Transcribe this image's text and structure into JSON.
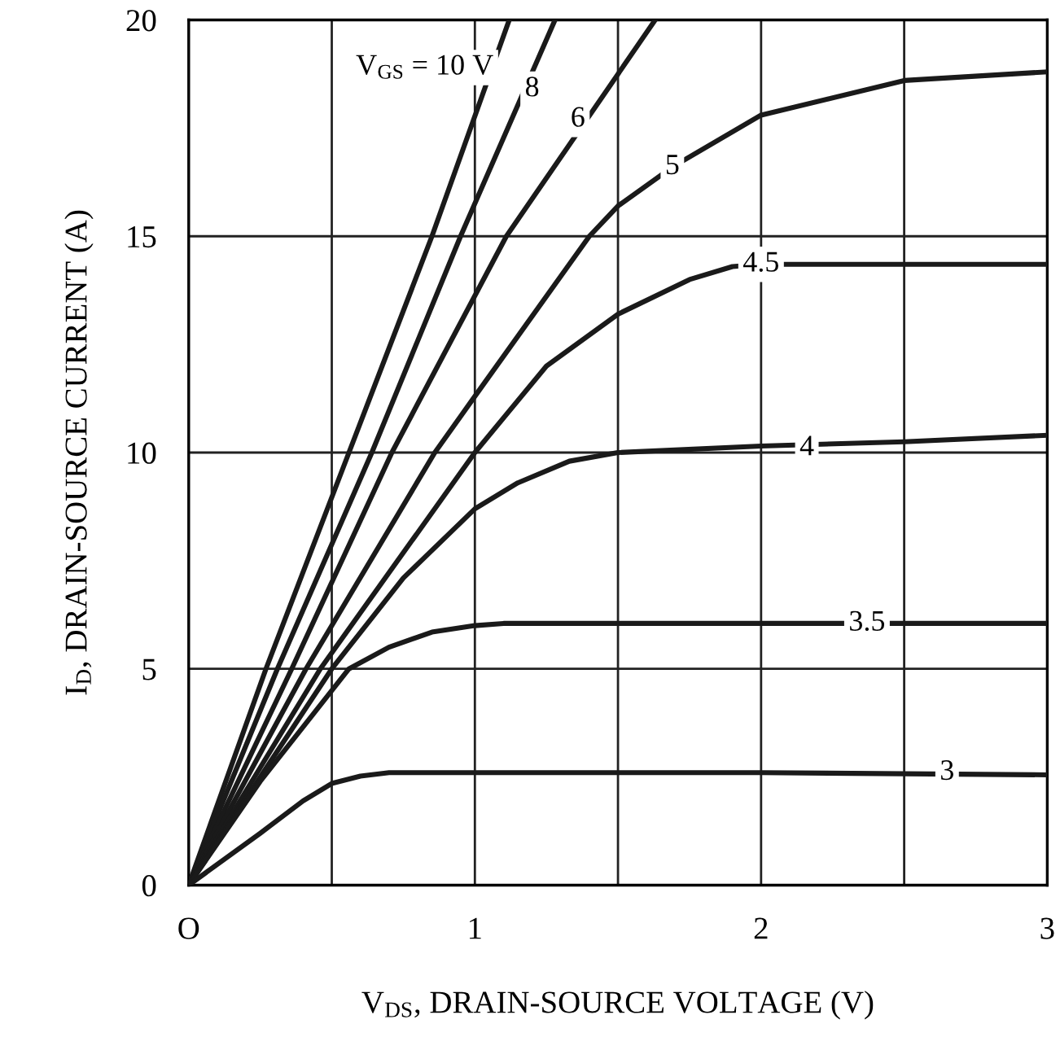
{
  "chart_data": {
    "type": "line",
    "xlabel": "V$_{DS}$, DRAIN-SOURCE VOLTAGE (V)",
    "ylabel": "I$_{D}$, DRAIN-SOURCE CURRENT (A)",
    "xlim": [
      0,
      3
    ],
    "ylim": [
      0,
      20
    ],
    "xticks": [
      {
        "value": 0,
        "label": "O"
      },
      {
        "value": 0.5,
        "label": null
      },
      1,
      {
        "value": 1.5,
        "label": null
      },
      2,
      {
        "value": 2.5,
        "label": null
      },
      3
    ],
    "yticks": [
      0,
      5,
      10,
      15,
      20
    ],
    "grid": true,
    "marker": "none",
    "line_style": "solid",
    "series": [
      {
        "color": "#1a1a1a",
        "x": [
          0,
          0.27,
          0.56,
          0.85,
          1.12
        ],
        "values": [
          0,
          5,
          10,
          15,
          20
        ]
      },
      {
        "color": "#1a1a1a",
        "x": [
          0,
          0.31,
          0.64,
          0.95,
          1.28
        ],
        "values": [
          0,
          5,
          10,
          15,
          20
        ]
      },
      {
        "color": "#1a1a1a",
        "x": [
          0,
          0.36,
          0.71,
          1.11,
          1.63
        ],
        "values": [
          0,
          5,
          10,
          15,
          20
        ]
      },
      {
        "color": "#1a1a1a",
        "x": [
          0,
          0.41,
          0.86,
          1.0,
          1.4,
          1.5,
          1.69,
          2.0,
          2.5,
          3.0
        ],
        "values": [
          0,
          5,
          10,
          11.3,
          15,
          15.7,
          16.6,
          17.8,
          18.6,
          18.8
        ]
      },
      {
        "color": "#1a1a1a",
        "x": [
          0,
          0.46,
          1.0,
          1.25,
          1.5,
          1.75,
          1.9,
          2.0,
          3.0
        ],
        "values": [
          0,
          5,
          10,
          12,
          13.2,
          14,
          14.3,
          14.35,
          14.35
        ]
      },
      {
        "color": "#1a1a1a",
        "x": [
          0,
          0.5,
          0.75,
          1.0,
          1.15,
          1.33,
          1.5,
          2.0,
          2.5,
          3.0
        ],
        "values": [
          0,
          5,
          7.1,
          8.7,
          9.3,
          9.8,
          10,
          10.15,
          10.25,
          10.4
        ]
      },
      {
        "color": "#1a1a1a",
        "x": [
          0,
          0.25,
          0.56,
          0.7,
          0.85,
          1.0,
          1.1,
          2.0,
          3.0
        ],
        "values": [
          0,
          2.4,
          5,
          5.5,
          5.85,
          6,
          6.05,
          6.05,
          6.05
        ]
      },
      {
        "color": "#1a1a1a",
        "x": [
          0,
          0.25,
          0.4,
          0.5,
          0.6,
          0.7,
          2.0,
          3.0
        ],
        "values": [
          0,
          1.2,
          1.95,
          2.35,
          2.52,
          2.6,
          2.6,
          2.55
        ]
      }
    ],
    "annotations": [
      "V$_{GS}$ = 10 V",
      {
        "text": "8",
        "x": 1.2,
        "y": 18.4
      },
      {
        "text": "6",
        "x": 1.36,
        "y": 17.7
      },
      {
        "text": "5",
        "x": 1.69,
        "y": 16.6
      },
      {
        "text": "4.5",
        "x": 2.0,
        "y": 14.35
      },
      {
        "text": "4",
        "x": 2.16,
        "y": 10.1
      },
      {
        "text": "3.5",
        "x": 2.37,
        "y": 6.05
      },
      {
        "text": "3",
        "x": 2.65,
        "y": 2.6
      }
    ]
  }
}
